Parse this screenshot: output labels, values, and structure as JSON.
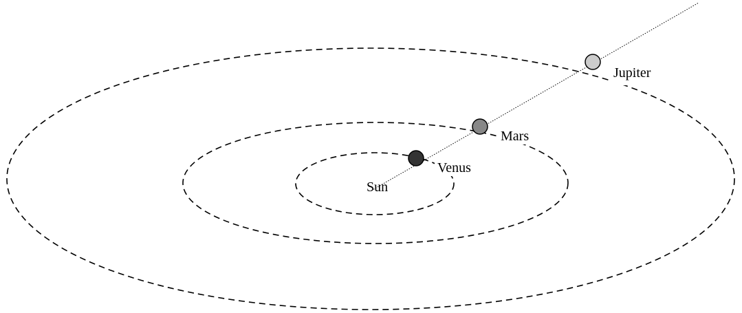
{
  "nodes": [
    {
      "label": "Sun"
    },
    {
      "label": "Venus"
    },
    {
      "label": "Mars"
    },
    {
      "label": "Jupiter"
    }
  ]
}
